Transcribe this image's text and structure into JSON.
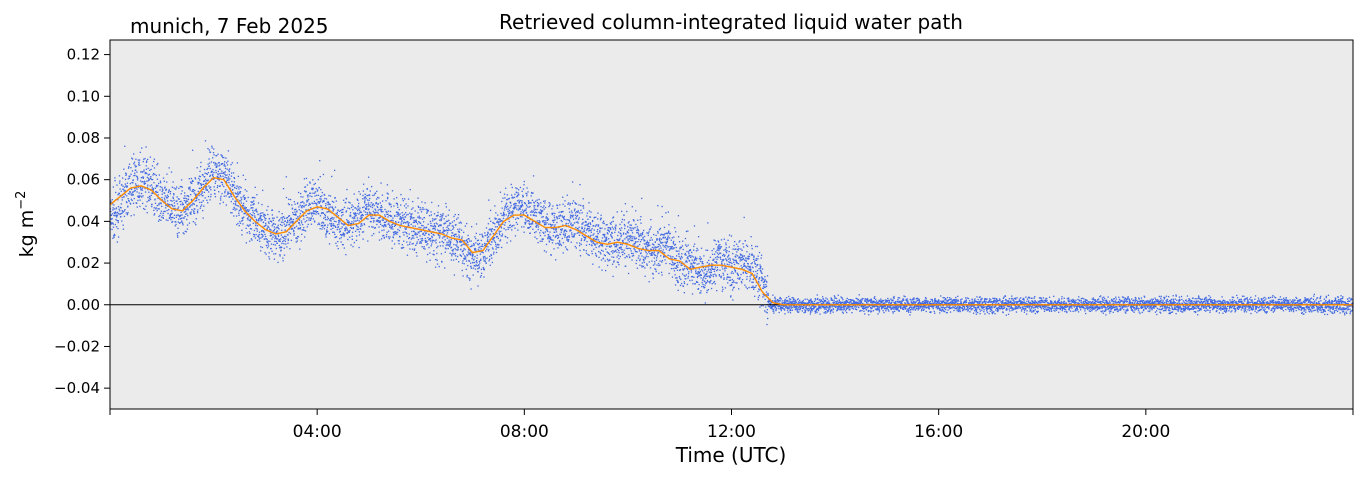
{
  "chart_data": {
    "type": "scatter",
    "title": "Retrieved column-integrated liquid water path",
    "subtitle": "munich, 7 Feb 2025",
    "xlabel": "Time (UTC)",
    "ylabel_base": "kg m",
    "ylabel_exp": "−2",
    "xlim_hours": [
      0,
      24
    ],
    "ylim": [
      -0.05,
      0.127
    ],
    "x_ticks": [
      {
        "hour": 0,
        "label": ""
      },
      {
        "hour": 4,
        "label": "04:00"
      },
      {
        "hour": 8,
        "label": "08:00"
      },
      {
        "hour": 12,
        "label": "12:00"
      },
      {
        "hour": 16,
        "label": "16:00"
      },
      {
        "hour": 20,
        "label": "20:00"
      },
      {
        "hour": 24,
        "label": ""
      }
    ],
    "y_ticks": [
      {
        "value": 0.12,
        "label": "0.12"
      },
      {
        "value": 0.1,
        "label": "0.10"
      },
      {
        "value": 0.08,
        "label": "0.08"
      },
      {
        "value": 0.06,
        "label": "0.06"
      },
      {
        "value": 0.04,
        "label": "0.04"
      },
      {
        "value": 0.02,
        "label": "0.02"
      },
      {
        "value": 0.0,
        "label": "0.00"
      },
      {
        "value": -0.02,
        "label": "−0.02"
      },
      {
        "value": -0.04,
        "label": "−0.04"
      }
    ],
    "zero_line": true,
    "grid": false,
    "background_color": "#ebebeb",
    "colors": {
      "raw": "#4169e1",
      "smoothed": "#ff8c00"
    },
    "series": [
      {
        "kind": "scatter",
        "hours": [
          0.0,
          0.25,
          0.5,
          0.75,
          1.0,
          1.25,
          1.5,
          1.75,
          2.0,
          2.25,
          2.5,
          2.75,
          3.0,
          3.25,
          3.5,
          3.75,
          4.0,
          4.25,
          4.5,
          4.75,
          5.0,
          5.25,
          5.5,
          5.75,
          6.0,
          6.25,
          6.5,
          6.75,
          7.0,
          7.25,
          7.5,
          7.75,
          8.0,
          8.25,
          8.5,
          8.75,
          9.0,
          9.25,
          9.5,
          9.75,
          10.0,
          10.25,
          10.5,
          10.75,
          11.0,
          11.25,
          11.5,
          11.75,
          12.0,
          12.25,
          12.5,
          12.6,
          12.75,
          13.0,
          14.0,
          16.0,
          18.0,
          20.0,
          22.0,
          24.0
        ],
        "values": [
          0.04,
          0.05,
          0.06,
          0.058,
          0.05,
          0.045,
          0.047,
          0.055,
          0.065,
          0.06,
          0.048,
          0.042,
          0.035,
          0.033,
          0.037,
          0.045,
          0.05,
          0.042,
          0.038,
          0.04,
          0.046,
          0.043,
          0.04,
          0.038,
          0.036,
          0.035,
          0.033,
          0.03,
          0.022,
          0.028,
          0.038,
          0.045,
          0.048,
          0.042,
          0.036,
          0.037,
          0.04,
          0.035,
          0.03,
          0.03,
          0.032,
          0.028,
          0.025,
          0.03,
          0.02,
          0.018,
          0.015,
          0.022,
          0.018,
          0.02,
          0.016,
          0.01,
          0.0,
          0.0,
          0.0,
          0.0,
          0.0,
          0.0,
          0.0,
          0.0
        ]
      },
      {
        "kind": "line",
        "hours": [
          0.0,
          0.2,
          0.4,
          0.6,
          0.8,
          1.0,
          1.2,
          1.4,
          1.6,
          1.8,
          2.0,
          2.2,
          2.4,
          2.6,
          2.8,
          3.0,
          3.2,
          3.4,
          3.6,
          3.8,
          4.0,
          4.2,
          4.4,
          4.6,
          4.8,
          5.0,
          5.2,
          5.4,
          5.6,
          5.8,
          6.0,
          6.2,
          6.4,
          6.6,
          6.8,
          7.0,
          7.2,
          7.4,
          7.6,
          7.8,
          8.0,
          8.2,
          8.4,
          8.6,
          8.8,
          9.0,
          9.2,
          9.4,
          9.6,
          9.8,
          10.0,
          10.2,
          10.4,
          10.6,
          10.8,
          11.0,
          11.2,
          11.4,
          11.6,
          11.8,
          12.0,
          12.2,
          12.4,
          12.6,
          12.8,
          13.0,
          14.0,
          16.0,
          18.0,
          20.0,
          22.0,
          24.0
        ],
        "values": [
          0.048,
          0.052,
          0.056,
          0.057,
          0.055,
          0.05,
          0.046,
          0.045,
          0.05,
          0.056,
          0.061,
          0.06,
          0.052,
          0.045,
          0.04,
          0.036,
          0.034,
          0.035,
          0.04,
          0.045,
          0.047,
          0.046,
          0.042,
          0.038,
          0.039,
          0.043,
          0.043,
          0.04,
          0.038,
          0.037,
          0.036,
          0.035,
          0.034,
          0.032,
          0.031,
          0.025,
          0.026,
          0.033,
          0.04,
          0.043,
          0.043,
          0.04,
          0.037,
          0.037,
          0.038,
          0.036,
          0.033,
          0.03,
          0.029,
          0.03,
          0.029,
          0.027,
          0.026,
          0.026,
          0.022,
          0.021,
          0.017,
          0.018,
          0.019,
          0.019,
          0.018,
          0.017,
          0.015,
          0.006,
          0.001,
          0.0,
          0.0,
          0.0,
          0.0,
          0.0,
          0.0,
          0.0
        ]
      }
    ]
  }
}
